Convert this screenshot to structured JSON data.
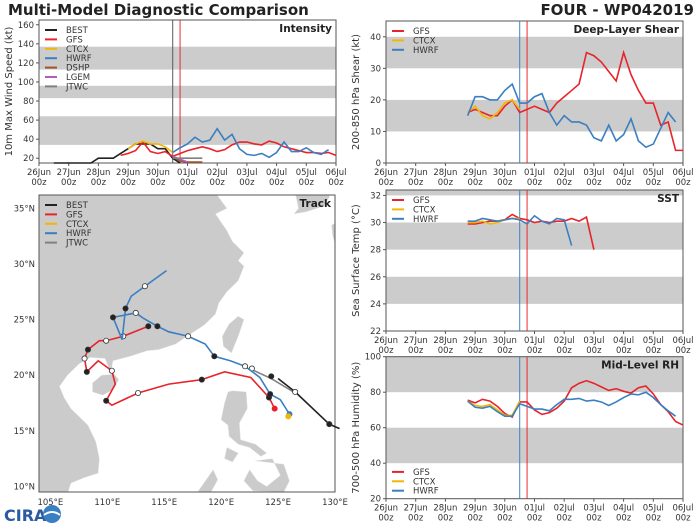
{
  "header": {
    "title": "Multi-Model Diagnostic Comparison",
    "storm": "FOUR - WP042019"
  },
  "logo_text": "CIRA",
  "colors": {
    "BEST": "#222222",
    "GFS": "#e8232a",
    "CTCX": "#f2b705",
    "HWRF": "#3a7fc1",
    "DSHP": "#a0522d",
    "LGEM": "#b05cc0",
    "JTWC": "#808080",
    "band": "#cccccc",
    "land": "#cbcbcb"
  },
  "x_axis": {
    "xlim": [
      "2019-06-26T00",
      "2019-07-06T00"
    ],
    "tick_labels": [
      [
        "26Jun",
        "00z"
      ],
      [
        "27Jun",
        "00z"
      ],
      [
        "28Jun",
        "00z"
      ],
      [
        "29Jun",
        "00z"
      ],
      [
        "30Jun",
        "00z"
      ],
      [
        "01Jul",
        "00z"
      ],
      [
        "02Jul",
        "00z"
      ],
      [
        "03Jul",
        "00z"
      ],
      [
        "04Jul",
        "00z"
      ],
      [
        "05Jul",
        "00z"
      ],
      [
        "06Jul",
        "00z"
      ]
    ]
  },
  "chart_data": [
    {
      "id": "intensity",
      "type": "line",
      "title": "Intensity",
      "ylabel": "10m Max Wind Speed (kt)",
      "ylim": [
        15,
        165
      ],
      "yticks": [
        20,
        40,
        60,
        80,
        100,
        120,
        140,
        160
      ],
      "grid": false,
      "bands": [
        [
          34,
          64
        ],
        [
          83,
          96
        ],
        [
          113,
          137
        ]
      ],
      "legend": "top-left",
      "vlines": [
        {
          "t": "2019-06-30T12",
          "color": "#555555"
        },
        {
          "t": "2019-06-30T18",
          "color": "#e8232a"
        }
      ],
      "series": [
        {
          "name": "BEST",
          "start": "2019-06-26T12",
          "step_hours": 6,
          "values": [
            15,
            15,
            15,
            15,
            15,
            15,
            20,
            20,
            20,
            25,
            30,
            35,
            35,
            35,
            30,
            30,
            20,
            15
          ]
        },
        {
          "name": "GFS",
          "start": "2019-06-28T18",
          "step_hours": 6,
          "values": [
            23,
            25,
            28,
            37,
            27,
            25,
            27,
            22,
            25,
            28,
            30,
            32,
            30,
            27,
            29,
            34,
            37,
            37,
            35,
            34,
            38,
            36,
            32,
            30,
            28,
            26,
            26,
            25,
            26,
            23
          ]
        },
        {
          "name": "CTCX",
          "start": "2019-06-29T00",
          "step_hours": 6,
          "values": [
            30,
            35,
            38,
            35,
            35,
            32,
            26
          ]
        },
        {
          "name": "HWRF",
          "start": "2019-06-30T12",
          "step_hours": 6,
          "values": [
            26,
            31,
            35,
            42,
            37,
            39,
            51,
            39,
            45,
            30,
            24,
            23,
            25,
            21,
            26,
            37,
            27,
            27,
            31,
            26,
            24,
            29
          ]
        },
        {
          "name": "DSHP",
          "start": "2019-06-30T12",
          "step_hours": 6,
          "values": [
            22,
            17,
            16,
            16,
            16
          ]
        },
        {
          "name": "LGEM",
          "start": "2019-06-30T12",
          "step_hours": 6,
          "values": [
            22,
            19,
            16
          ]
        },
        {
          "name": "JTWC",
          "start": "2019-06-30T12",
          "step_hours": 6,
          "values": [
            20,
            20,
            20,
            20,
            20
          ]
        }
      ]
    },
    {
      "id": "shear",
      "type": "line",
      "title": "Deep-Layer Shear",
      "ylabel": "200-850 hPa Shear (kt)",
      "ylim": [
        0,
        45
      ],
      "yticks": [
        0,
        10,
        20,
        30,
        40
      ],
      "grid": false,
      "bands": [
        [
          10,
          20
        ],
        [
          30,
          40
        ]
      ],
      "legend": "top-left",
      "vlines": [
        {
          "t": "2019-06-30T12",
          "color": "#3a7fc1"
        },
        {
          "t": "2019-06-30T18",
          "color": "#e8232a"
        }
      ],
      "series": [
        {
          "name": "GFS",
          "start": "2019-06-28T18",
          "step_hours": 6,
          "values": [
            16,
            17,
            16,
            15,
            15,
            18,
            20,
            16,
            17,
            18,
            17,
            16,
            19,
            21,
            23,
            25,
            35,
            34,
            32,
            29,
            26,
            35,
            28,
            23,
            19,
            19,
            12,
            13,
            4,
            4
          ]
        },
        {
          "name": "CTCX",
          "start": "2019-06-28T18",
          "step_hours": 6,
          "values": [
            16,
            18,
            15,
            14,
            16,
            19,
            20,
            17
          ]
        },
        {
          "name": "HWRF",
          "start": "2019-06-28T18",
          "step_hours": 6,
          "values": [
            15,
            21,
            21,
            20,
            20,
            23,
            25,
            19,
            19,
            21,
            22,
            16,
            12,
            15,
            13,
            13,
            12,
            8,
            7,
            12,
            7,
            9,
            14,
            7,
            5,
            6,
            11,
            16,
            13
          ]
        }
      ]
    },
    {
      "id": "sst",
      "type": "line",
      "title": "SST",
      "ylabel": "Sea Surface Temp (°C)",
      "ylim": [
        22,
        32.4
      ],
      "yticks": [
        22,
        24,
        26,
        28,
        30,
        32
      ],
      "grid": false,
      "bands": [
        [
          24,
          26
        ],
        [
          28,
          30
        ],
        [
          32,
          32.4
        ]
      ],
      "legend": "top-left",
      "vlines": [
        {
          "t": "2019-06-30T12",
          "color": "#3a7fc1"
        },
        {
          "t": "2019-06-30T18",
          "color": "#e8232a"
        }
      ],
      "series": [
        {
          "name": "GFS",
          "start": "2019-06-28T18",
          "step_hours": 6,
          "values": [
            29.9,
            29.9,
            30.0,
            30.1,
            30.1,
            30.2,
            30.6,
            30.3,
            30.2,
            30.0,
            30.1,
            30.0,
            30.1,
            30.1,
            30.3,
            30.1,
            30.4,
            28.0
          ]
        },
        {
          "name": "CTCX",
          "start": "2019-06-28T18",
          "step_hours": 6,
          "values": [
            30.0,
            30.0,
            30.1,
            29.9,
            30.0,
            30.2,
            30.3,
            30.3
          ]
        },
        {
          "name": "HWRF",
          "start": "2019-06-28T18",
          "step_hours": 6,
          "values": [
            30.1,
            30.1,
            30.3,
            30.2,
            30.1,
            30.2,
            30.3,
            30.2,
            29.9,
            30.5,
            30.1,
            29.9,
            30.3,
            30.2,
            28.3
          ]
        }
      ]
    },
    {
      "id": "rh",
      "type": "line",
      "title": "Mid-Level RH",
      "ylabel": "700-500 hPa Humidity (%)",
      "ylim": [
        20,
        100
      ],
      "yticks": [
        20,
        40,
        60,
        80,
        100
      ],
      "grid": false,
      "bands": [
        [
          40,
          60
        ],
        [
          80,
          100
        ]
      ],
      "legend": "bottom-left",
      "vlines": [
        {
          "t": "2019-06-30T12",
          "color": "#3a7fc1"
        },
        {
          "t": "2019-06-30T18",
          "color": "#e8232a"
        }
      ],
      "series": [
        {
          "name": "GFS",
          "start": "2019-06-28T18",
          "step_hours": 6,
          "values": [
            75.5,
            74,
            76,
            75,
            72,
            68,
            66,
            74.5,
            74.5,
            70,
            67.5,
            68.5,
            71,
            75,
            82.5,
            85,
            86.5,
            85,
            83,
            81,
            82,
            80.5,
            79.5,
            82.5,
            83.5,
            79,
            73,
            69,
            63.5,
            61.5
          ]
        },
        {
          "name": "CTCX",
          "start": "2019-06-28T18",
          "step_hours": 6,
          "values": [
            75,
            72.5,
            72,
            73,
            70,
            67,
            67,
            75
          ]
        },
        {
          "name": "HWRF",
          "start": "2019-06-28T18",
          "step_hours": 6,
          "values": [
            75,
            71.5,
            71,
            72,
            69,
            66.5,
            66.5,
            73.5,
            72,
            70.5,
            70.5,
            69.5,
            73,
            76,
            76,
            76.5,
            75,
            75.5,
            74.5,
            72.5,
            74.5,
            77,
            79,
            78.5,
            80,
            77,
            73,
            69.5,
            66.5
          ]
        }
      ]
    },
    {
      "id": "track",
      "type": "line",
      "title": "Track",
      "legend": "top-left",
      "xlim": [
        104,
        130
      ],
      "ylim": [
        9.5,
        36.2
      ],
      "xtick_labels": [
        [
          105,
          "105°E"
        ],
        [
          110,
          "110°E"
        ],
        [
          115,
          "115°E"
        ],
        [
          120,
          "120°E"
        ],
        [
          125,
          "125°E"
        ],
        [
          130,
          "130°E"
        ]
      ],
      "ytick_labels": [
        [
          10,
          "10°N"
        ],
        [
          15,
          "15°N"
        ],
        [
          20,
          "20°N"
        ],
        [
          25,
          "25°N"
        ],
        [
          30,
          "30°N"
        ],
        [
          35,
          "35°N"
        ]
      ],
      "series": [
        {
          "name": "BEST",
          "points": [
            [
              130.4,
              15.2
            ],
            [
              129.5,
              15.6
            ],
            [
              126.5,
              18.5
            ],
            [
              125.0,
              19.7
            ]
          ],
          "markers": [
            [
              129.5,
              15.6,
              "filled"
            ]
          ]
        },
        {
          "name": "GFS",
          "points": [
            [
              124.7,
              17.0
            ],
            [
              124.2,
              18.0
            ],
            [
              122.6,
              19.8
            ],
            [
              120.3,
              20.3
            ],
            [
              118.3,
              19.6
            ],
            [
              115.4,
              19.2
            ],
            [
              112.7,
              18.4
            ],
            [
              110.4,
              17.3
            ],
            [
              109.9,
              17.7
            ],
            [
              110.7,
              19.2
            ],
            [
              110.4,
              20.4
            ],
            [
              109.2,
              21.3
            ],
            [
              108.2,
              20.3
            ],
            [
              108.0,
              21.5
            ],
            [
              108.3,
              22.3
            ],
            [
              109.3,
              23.1
            ],
            [
              109.9,
              23.1
            ],
            [
              111.4,
              23.5
            ],
            [
              113.6,
              24.4
            ]
          ],
          "markers": [
            [
              124.7,
              17.0,
              "start"
            ],
            [
              124.2,
              18.0,
              "filled"
            ],
            [
              118.3,
              19.6,
              "filled"
            ],
            [
              109.9,
              17.7,
              "filled"
            ],
            [
              108.2,
              20.3,
              "filled"
            ],
            [
              108.3,
              22.3,
              "filled"
            ],
            [
              113.6,
              24.4,
              "filled"
            ],
            [
              112.7,
              18.4,
              "open"
            ],
            [
              110.4,
              20.4,
              "open"
            ],
            [
              108.0,
              21.5,
              "open"
            ],
            [
              109.9,
              23.1,
              "open"
            ],
            [
              111.4,
              23.5,
              "open"
            ]
          ]
        },
        {
          "name": "CTCX",
          "points": [
            [
              125.9,
              16.3
            ]
          ],
          "markers": [
            [
              125.9,
              16.3,
              "start"
            ]
          ]
        },
        {
          "name": "HWRF",
          "points": [
            [
              126.0,
              16.5
            ],
            [
              125.2,
              17.8
            ],
            [
              124.3,
              18.3
            ],
            [
              123.4,
              19.8
            ],
            [
              122.1,
              20.8
            ],
            [
              120.8,
              21.3
            ],
            [
              119.4,
              21.7
            ],
            [
              118.6,
              22.8
            ],
            [
              117.1,
              23.5
            ],
            [
              115.4,
              23.9
            ],
            [
              114.4,
              24.4
            ],
            [
              113.2,
              25.1
            ],
            [
              112.5,
              25.6
            ],
            [
              110.5,
              25.2
            ],
            [
              111.3,
              23.2
            ],
            [
              111.6,
              26.0
            ],
            [
              112.1,
              27.1
            ],
            [
              113.3,
              28.0
            ],
            [
              115.2,
              29.4
            ]
          ],
          "markers": [
            [
              126.0,
              16.5,
              "start"
            ],
            [
              124.3,
              18.3,
              "filled"
            ],
            [
              119.4,
              21.7,
              "filled"
            ],
            [
              114.4,
              24.4,
              "filled"
            ],
            [
              110.5,
              25.2,
              "filled"
            ],
            [
              111.6,
              26.0,
              "filled"
            ],
            [
              122.1,
              20.8,
              "open"
            ],
            [
              117.1,
              23.5,
              "open"
            ],
            [
              112.5,
              25.6,
              "open"
            ],
            [
              113.3,
              28.0,
              "open"
            ]
          ]
        },
        {
          "name": "JTWC",
          "points": [
            [
              126.5,
              18.4
            ],
            [
              124.4,
              19.7
            ],
            [
              122.7,
              20.5
            ]
          ],
          "markers": [
            [
              126.5,
              18.5,
              "open"
            ],
            [
              124.4,
              19.9,
              "filled"
            ],
            [
              122.7,
              20.6,
              "open"
            ]
          ]
        }
      ]
    }
  ]
}
